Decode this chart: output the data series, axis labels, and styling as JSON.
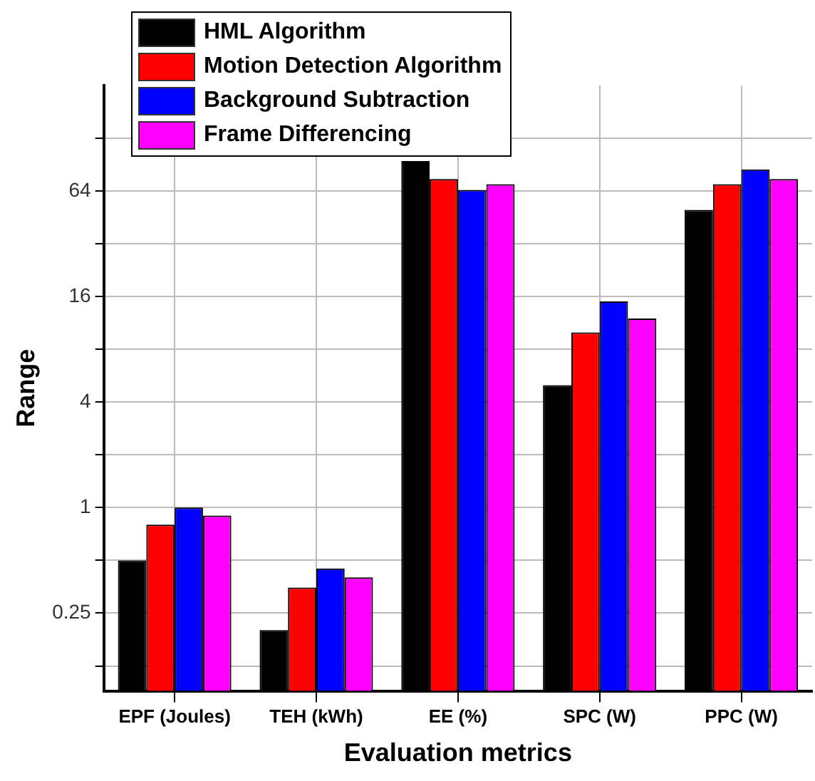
{
  "chart_data": {
    "type": "bar",
    "xlabel": "Evaluation metrics",
    "ylabel": "Range",
    "log": true,
    "grid": true,
    "legend": "top left",
    "categories": [
      "EPF (Joules)",
      "TEH (kWh)",
      "EE (%)",
      "SPC (W)",
      "PPC (W)"
    ],
    "ylim": [
      0.09,
      256
    ],
    "yticks": [
      {
        "value": 0.125,
        "label": null
      },
      0.25,
      {
        "value": 0.5,
        "label": null
      },
      1,
      {
        "value": 2,
        "label": null
      },
      4,
      {
        "value": 8,
        "label": null
      },
      16,
      {
        "value": 32,
        "label": null
      },
      64,
      {
        "value": 128,
        "label": null
      }
    ],
    "series": [
      {
        "name": "HML Algorithm",
        "color": "#000000",
        "values": [
          0.5,
          0.2,
          95,
          5,
          50
        ]
      },
      {
        "name": "Motion Detection Algorithm",
        "color": "#ff0000",
        "values": [
          0.8,
          0.35,
          75,
          10,
          70
        ]
      },
      {
        "name": "Background Subtraction",
        "color": "#0000ff",
        "values": [
          1,
          0.45,
          65,
          15,
          85
        ]
      },
      {
        "name": "Frame Differencing",
        "color": "#ff00ff",
        "values": [
          0.9,
          0.4,
          70,
          12,
          75
        ]
      }
    ]
  }
}
